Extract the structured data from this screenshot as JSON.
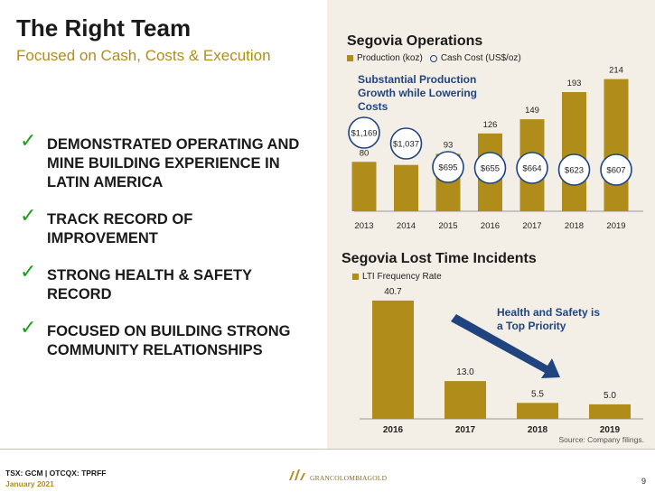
{
  "header": {
    "title": "The Right Team",
    "subtitle": "Focused on Cash, Costs & Execution"
  },
  "bullets": [
    {
      "line1": "DEMONSTRATED OPERATING AND",
      "line2": "MINE BUILDING EXPERIENCE IN",
      "line3": "LATIN AMERICA"
    },
    {
      "line1": "TRACK RECORD OF",
      "line2": "IMPROVEMENT"
    },
    {
      "line1": "STRONG HEALTH & SAFETY",
      "line2": "RECORD"
    },
    {
      "line1": "FOCUSED ON BUILDING STRONG",
      "line2": "COMMUNITY RELATIONSHIPS"
    }
  ],
  "chart_data": [
    {
      "type": "bar",
      "title": "Segovia Operations",
      "categories": [
        "2013",
        "2014",
        "2015",
        "2016",
        "2017",
        "2018",
        "2019"
      ],
      "series": [
        {
          "name": "Production (koz)",
          "values": [
            80,
            75,
            93,
            126,
            149,
            193,
            214
          ],
          "color": "#b08d1a"
        },
        {
          "name": "Cash Cost (US$/oz)",
          "values": [
            1169,
            1037,
            695,
            655,
            664,
            623,
            607
          ],
          "labels": [
            "$1,169",
            "$1,037",
            "$695",
            "$655",
            "$664",
            "$623",
            "$607"
          ],
          "color": "#1f4480"
        }
      ],
      "annotation": {
        "line1": "Substantial Production",
        "line2": "Growth while Lowering",
        "line3": "Costs"
      },
      "legend": "top-left",
      "grid": false
    },
    {
      "type": "bar",
      "title": "Segovia Lost Time Incidents",
      "categories": [
        "2016",
        "2017",
        "2018",
        "2019"
      ],
      "series": [
        {
          "name": "LTI Frequency Rate",
          "values": [
            40.7,
            13.0,
            5.5,
            5.0
          ],
          "labels": [
            "40.7",
            "13.0",
            "5.5",
            "5.0"
          ],
          "color": "#b08d1a"
        }
      ],
      "annotation": {
        "line1": "Health and Safety is",
        "line2": "a Top Priority"
      },
      "legend": "top-left",
      "grid": false
    }
  ],
  "source": "Source: Company filings.",
  "footer": {
    "ticker": "TSX: GCM | OTCQX: TPRFF",
    "date": "January 2021",
    "logo_text": "GRANCOLOMBIAGOLD",
    "page_number": "9"
  },
  "icons": {
    "check": "check-icon",
    "arrow": "arrow-up-right-icon",
    "logo": "gold-bars-logo-icon"
  },
  "colors": {
    "gold": "#b08d1a",
    "navy": "#1f4480",
    "check_green": "#19a019",
    "panel_bg": "#f4efe6"
  }
}
